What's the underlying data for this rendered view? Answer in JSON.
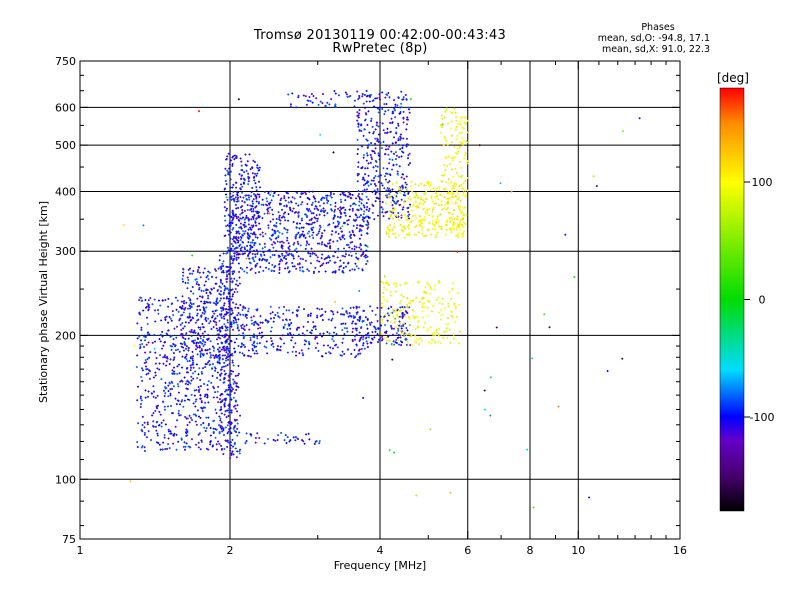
{
  "header": {
    "title_line1": "Tromsø 20130119 00:42:00-00:43:43",
    "title_line2": "RwPretec (8p)"
  },
  "stats": {
    "title": "Phases",
    "line_o": "mean, sd,O: -94.8, 17.1",
    "line_x": "mean, sd,X:  91.0, 22.3"
  },
  "colorbar": {
    "unit_label": "[deg]",
    "ticks": [
      {
        "label": "100",
        "value": 100
      },
      {
        "label": "0",
        "value": 0
      },
      {
        "label": "-100",
        "value": -100
      }
    ],
    "range": [
      -180,
      180
    ]
  },
  "chart_data": {
    "type": "scatter",
    "title": "Tromsø 20130119 00:42:00-00:43:43",
    "subtitle": "RwPretec (8p)",
    "xlabel": "Frequency [MHz]",
    "ylabel": "Stationary phase Virtual Height [km]",
    "xscale": "log",
    "yscale": "log",
    "xlim": [
      1,
      16
    ],
    "ylim": [
      75,
      750
    ],
    "xticks": [
      {
        "label": "1",
        "value": 1
      },
      {
        "label": "2",
        "value": 2
      },
      {
        "label": "4",
        "value": 4
      },
      {
        "label": "6",
        "value": 6
      },
      {
        "label": "8",
        "value": 8
      },
      {
        "label": "10",
        "value": 10
      },
      {
        "label": "16",
        "value": 16
      }
    ],
    "yticks": [
      {
        "label": "75",
        "value": 75
      },
      {
        "label": "100",
        "value": 100
      },
      {
        "label": "200",
        "value": 200
      },
      {
        "label": "300",
        "value": 300
      },
      {
        "label": "400",
        "value": 400
      },
      {
        "label": "500",
        "value": 500
      },
      {
        "label": "600",
        "value": 600
      },
      {
        "label": "750",
        "value": 750
      }
    ],
    "xgrid": [
      2,
      4,
      6,
      8,
      10
    ],
    "ygrid": [
      100,
      200,
      300,
      400,
      500,
      600
    ],
    "color_scale": "phase in deg",
    "clusters": [
      {
        "name_shown": "",
        "x_range": [
          1.3,
          2.05
        ],
        "y_range": [
          115,
          240
        ],
        "phase": -100,
        "n": 700
      },
      {
        "name_shown": "",
        "x_range": [
          1.6,
          2.0
        ],
        "y_range": [
          170,
          280
        ],
        "phase": -100,
        "n": 250
      },
      {
        "name_shown": "",
        "x_range": [
          1.9,
          2.1
        ],
        "y_range": [
          110,
          300
        ],
        "phase": -100,
        "n": 250
      },
      {
        "name_shown": "",
        "x_range": [
          2.0,
          3.8
        ],
        "y_range": [
          270,
          400
        ],
        "phase": -100,
        "n": 800
      },
      {
        "name_shown": "",
        "x_range": [
          1.95,
          2.3
        ],
        "y_range": [
          290,
          480
        ],
        "phase": -100,
        "n": 250
      },
      {
        "name_shown": "",
        "x_range": [
          3.6,
          4.6
        ],
        "y_range": [
          350,
          650
        ],
        "phase": -100,
        "n": 400
      },
      {
        "name_shown": "",
        "x_range": [
          2.6,
          3.6
        ],
        "y_range": [
          600,
          650
        ],
        "phase": -100,
        "n": 40
      },
      {
        "name_shown": "",
        "x_range": [
          4.1,
          5.9
        ],
        "y_range": [
          320,
          420
        ],
        "phase": 100,
        "n": 300
      },
      {
        "name_shown": "",
        "x_range": [
          5.3,
          6.0
        ],
        "y_range": [
          330,
          600
        ],
        "phase": 100,
        "n": 150
      },
      {
        "name_shown": "",
        "x_range": [
          2.1,
          3.8
        ],
        "y_range": [
          180,
          230
        ],
        "phase": -100,
        "n": 300
      },
      {
        "name_shown": "",
        "x_range": [
          3.5,
          4.6
        ],
        "y_range": [
          190,
          230
        ],
        "phase": -100,
        "n": 150
      },
      {
        "name_shown": "",
        "x_range": [
          4.0,
          5.8
        ],
        "y_range": [
          190,
          260
        ],
        "phase": 100,
        "n": 200
      },
      {
        "name_shown": "",
        "x_range": [
          2.1,
          3.1
        ],
        "y_range": [
          118,
          125
        ],
        "phase": -100,
        "n": 40
      },
      {
        "name_shown": "",
        "x_range": [
          1.2,
          14
        ],
        "y_range": [
          85,
          640
        ],
        "phase": 0,
        "n": 60
      }
    ]
  }
}
